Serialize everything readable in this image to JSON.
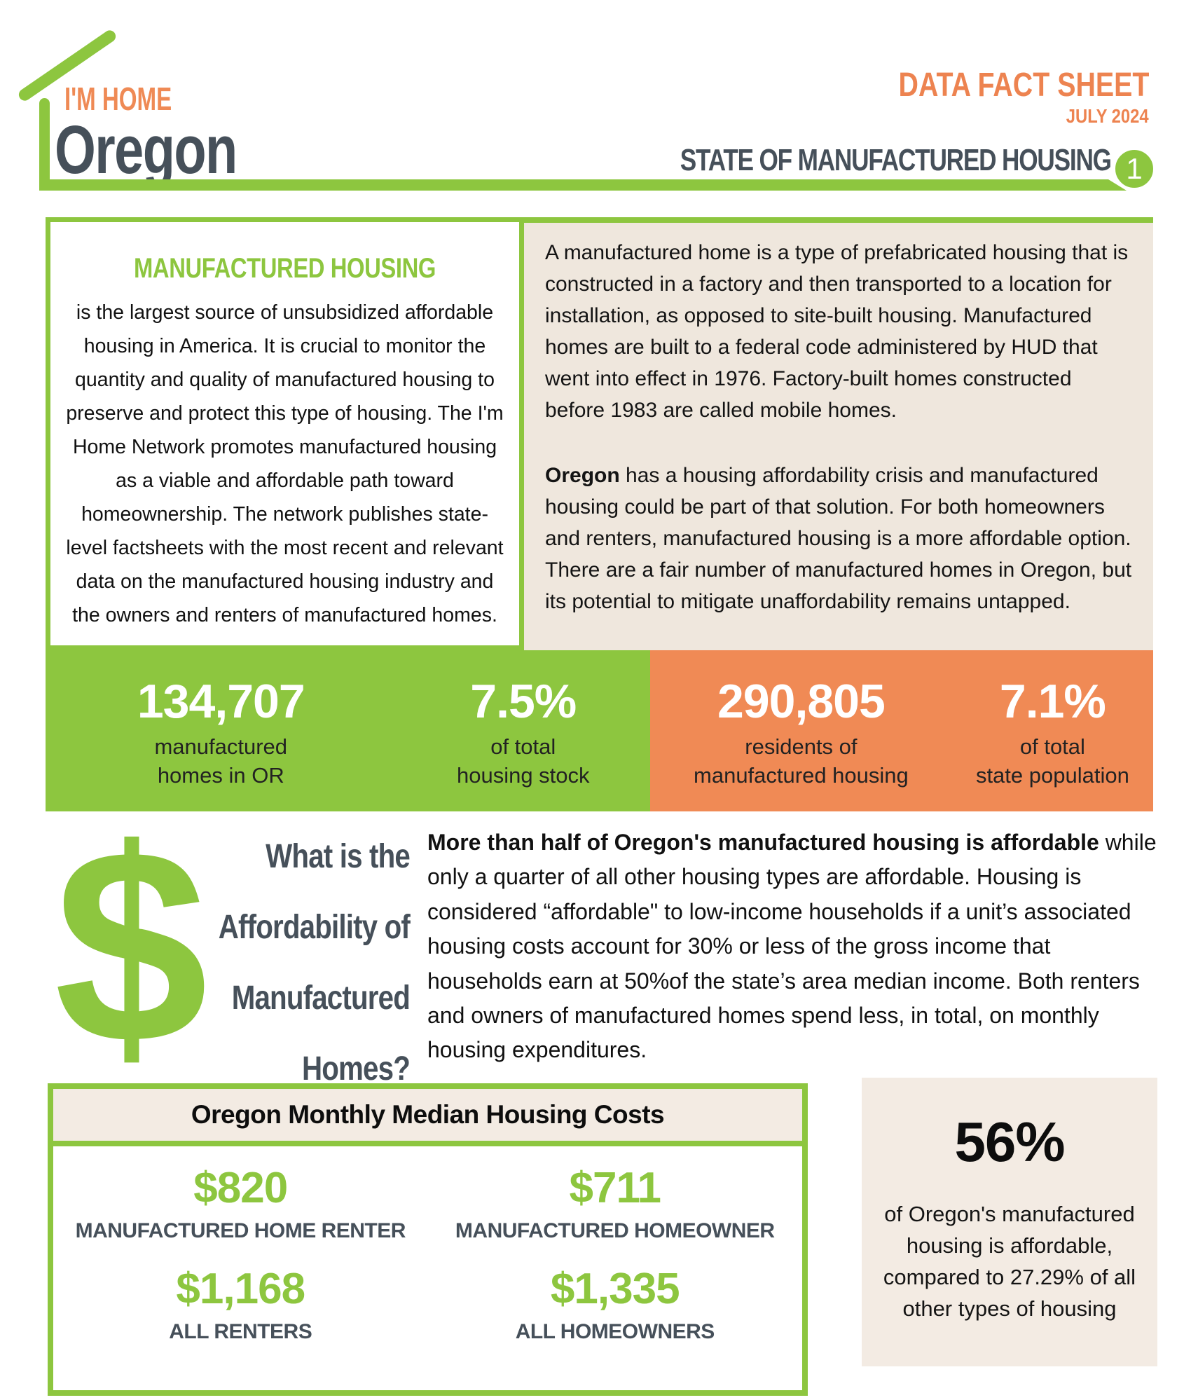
{
  "header": {
    "logo": {
      "brand": "I'M HOME",
      "state": "Oregon"
    },
    "title": "DATA FACT SHEET",
    "date": "JULY 2024",
    "subtitle": "STATE OF MANUFACTURED HOUSING",
    "page_number": "1"
  },
  "intro": {
    "left": {
      "heading": "MANUFACTURED HOUSING",
      "body": "is the largest source of unsubsidized affordable housing in America. It is crucial to monitor the quantity and quality of manufactured housing to preserve and protect this type of housing. The I'm Home Network promotes manufactured housing as a viable and affordable path toward homeownership. The network publishes state-level factsheets with the most recent and relevant data on the manufactured housing industry and the owners and renters of manufactured homes."
    },
    "right": {
      "para1": "A manufactured home is a type of prefabricated housing that is constructed in a factory and then transported to a location for installation, as opposed to site-built housing. Manufactured homes are built to a federal code administered by HUD that went into effect in 1976. Factory-built homes constructed before 1983 are called mobile homes.",
      "para2_lead": "Oregon",
      "para2_rest": " has a housing affordability crisis and manufactured housing could be part of that solution. For both homeowners and renters, manufactured housing is a more affordable option. There are a fair number of manufactured homes in Oregon, but its potential to mitigate unaffordability remains untapped."
    }
  },
  "stats": {
    "green": [
      {
        "value": "134,707",
        "line1": "manufactured",
        "line2": "homes in OR"
      },
      {
        "value": "7.5%",
        "line1": "of total",
        "line2": "housing stock"
      }
    ],
    "orange": [
      {
        "value": "290,805",
        "line1": "residents of",
        "line2": "manufactured housing"
      },
      {
        "value": "7.1%",
        "line1": "of total",
        "line2": "state population"
      }
    ]
  },
  "affordability": {
    "dollar_glyph": "$",
    "heading_lines": [
      "What is the",
      "Affordability of",
      "Manufactured",
      "Homes?"
    ],
    "lead": "More than half of Oregon's manufactured housing is affordable",
    "rest": " while only a quarter of all other housing types are affordable. Housing is considered “affordable\" to low-income households if a unit’s associated housing costs account for 30% or less of the gross income that households earn at 50%of the state’s area median income. Both renters and owners of manufactured homes spend less, in total, on monthly housing expenditures."
  },
  "costs_table": {
    "title": "Oregon Monthly Median Housing Costs",
    "items": [
      {
        "value": "$820",
        "label": "MANUFACTURED HOME RENTER"
      },
      {
        "value": "$711",
        "label": "MANUFACTURED HOMEOWNER"
      },
      {
        "value": "$1,168",
        "label": "ALL RENTERS"
      },
      {
        "value": "$1,335",
        "label": "ALL HOMEOWNERS"
      }
    ]
  },
  "highlight": {
    "value": "56%",
    "text": "of Oregon's manufactured housing is affordable, compared to 27.29% of all other types of housing"
  },
  "colors": {
    "green": "#8DC63F",
    "orange_panel": "#F08A55",
    "orange_text": "#ED8350",
    "slate": "#46505A",
    "beige_panel": "#EFE7DD",
    "beige_light": "#F3EBE3"
  }
}
